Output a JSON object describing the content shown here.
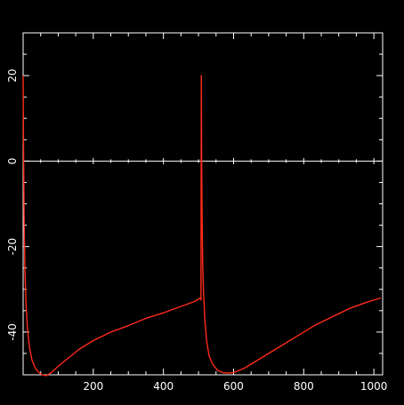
{
  "colors": {
    "background": "#000000",
    "axes": "#ffffff",
    "line": "#ff2a1a"
  },
  "chart_data": {
    "type": "line",
    "title": "",
    "xlabel": "",
    "ylabel": "",
    "xlim": [
      0,
      1025
    ],
    "ylim": [
      -50,
      30
    ],
    "grid": false,
    "legend": "none",
    "zero_line": true,
    "x_ticks": [
      200,
      400,
      600,
      800,
      1000
    ],
    "x_tick_labels": [
      "200",
      "400",
      "600",
      "800",
      "1000"
    ],
    "y_ticks": [
      20,
      0,
      -20,
      -40
    ],
    "y_tick_labels": [
      "20",
      "0",
      "-20",
      "-40"
    ],
    "series": [
      {
        "name": "",
        "x": [
          0,
          1,
          2,
          3,
          5,
          8,
          12,
          18,
          25,
          35,
          45,
          55,
          65,
          70,
          80,
          100,
          130,
          160,
          200,
          250,
          300,
          350,
          400,
          450,
          490,
          505,
          507,
          508,
          509,
          510,
          511,
          512,
          514,
          518,
          523,
          530,
          540,
          555,
          570,
          585,
          600,
          630,
          680,
          730,
          780,
          830,
          880,
          930,
          980,
          1020
        ],
        "y": [
          20,
          5,
          -5,
          -15,
          -25,
          -33,
          -39,
          -43.5,
          -46.5,
          -48.5,
          -49.5,
          -50,
          -50.2,
          -50,
          -49.5,
          -48,
          -46,
          -44,
          -42,
          -40,
          -38.5,
          -36.8,
          -35.5,
          -34,
          -32.8,
          -32,
          -32.5,
          20,
          0,
          -10,
          -18,
          -24,
          -30,
          -37,
          -42,
          -45.5,
          -47.5,
          -49,
          -49.5,
          -49.6,
          -49.5,
          -48.5,
          -46,
          -43.5,
          -41,
          -38.5,
          -36.5,
          -34.5,
          -33,
          -32
        ]
      }
    ]
  }
}
